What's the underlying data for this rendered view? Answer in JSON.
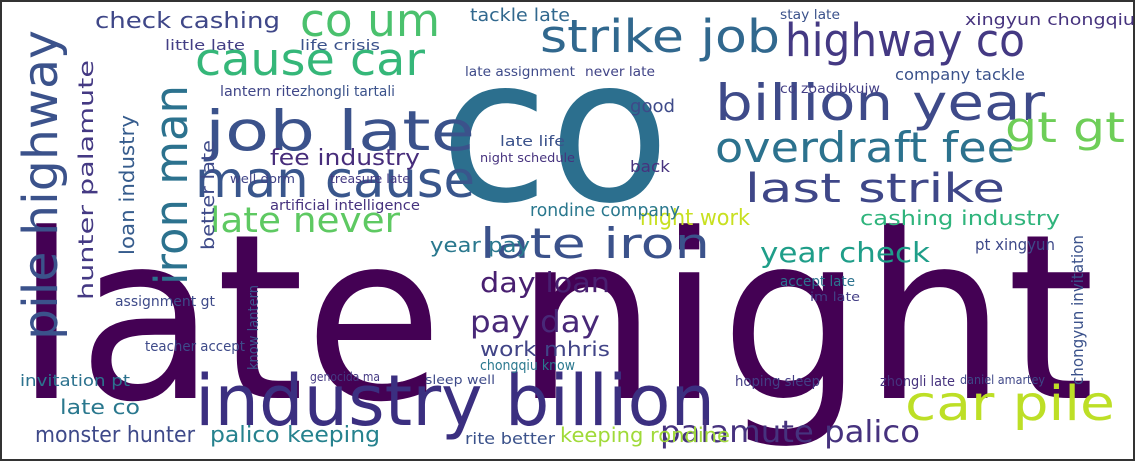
{
  "words": [
    {
      "text": "late night"
    },
    {
      "text": "co"
    },
    {
      "text": "industry billion"
    },
    {
      "text": "billion year"
    },
    {
      "text": "job late"
    },
    {
      "text": "man cause"
    },
    {
      "text": "cause car"
    },
    {
      "text": "co um"
    },
    {
      "text": "strike job"
    },
    {
      "text": "highway co"
    },
    {
      "text": "overdraft fee"
    },
    {
      "text": "last strike"
    },
    {
      "text": "gt gt"
    },
    {
      "text": "late iron"
    },
    {
      "text": "late never"
    },
    {
      "text": "fee industry"
    },
    {
      "text": "car pile"
    },
    {
      "text": "palamute palico"
    },
    {
      "text": "monster hunter"
    },
    {
      "text": "palico keeping"
    },
    {
      "text": "keeping rondine"
    },
    {
      "text": "day loan"
    },
    {
      "text": "pay day"
    },
    {
      "text": "work mhris"
    },
    {
      "text": "year check"
    },
    {
      "text": "year pay"
    },
    {
      "text": "night work"
    },
    {
      "text": "cashing industry"
    },
    {
      "text": "check cashing"
    },
    {
      "text": "pile highway"
    },
    {
      "text": "iron man"
    },
    {
      "text": "hunter palamute"
    },
    {
      "text": "loan industry"
    },
    {
      "text": "better late"
    },
    {
      "text": "xingyun chongqiu"
    },
    {
      "text": "company tackle"
    },
    {
      "text": "tackle late"
    },
    {
      "text": "rondine company"
    },
    {
      "text": "lantern rite"
    },
    {
      "text": "zhongli tartali"
    },
    {
      "text": "little late"
    },
    {
      "text": "life crisis"
    },
    {
      "text": "artificial intelligence"
    },
    {
      "text": "treasure late"
    },
    {
      "text": "well dorm"
    },
    {
      "text": "assignment gt"
    },
    {
      "text": "invitation pt"
    },
    {
      "text": "late co"
    },
    {
      "text": "rite better"
    },
    {
      "text": "sleep well"
    },
    {
      "text": "hoping sleep"
    },
    {
      "text": "zhongli late"
    },
    {
      "text": "daniel amartey"
    },
    {
      "text": "chongyun invitation"
    },
    {
      "text": "pt xingyun"
    },
    {
      "text": "accept late"
    },
    {
      "text": "im late"
    },
    {
      "text": "late life"
    },
    {
      "text": "night schedule"
    },
    {
      "text": "late assignment"
    },
    {
      "text": "never late"
    },
    {
      "text": "stay late"
    },
    {
      "text": "co zoadibkujw"
    },
    {
      "text": "good"
    },
    {
      "text": "back"
    },
    {
      "text": "chongqiu know"
    },
    {
      "text": "know lantern"
    },
    {
      "text": "teacher accept"
    },
    {
      "text": "genocida ma"
    }
  ]
}
